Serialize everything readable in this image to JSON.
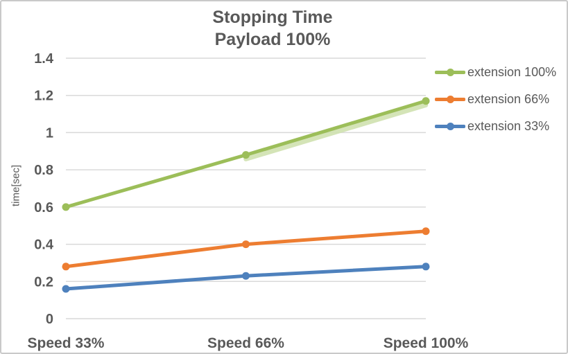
{
  "chart_data": {
    "type": "line",
    "title": "Stopping Time",
    "subtitle": "Payload 100%",
    "xlabel": "",
    "ylabel": "time[sec]",
    "categories": [
      "Speed 33%",
      "Speed 66%",
      "Speed 100%"
    ],
    "series": [
      {
        "name": "extension 100%",
        "color": "#9CBE59",
        "values": [
          0.6,
          0.88,
          1.17
        ],
        "shadow": true,
        "shadow_color": "#D0E2B0"
      },
      {
        "name": "extension 66%",
        "color": "#ED7D31",
        "values": [
          0.28,
          0.4,
          0.47
        ],
        "shadow": false
      },
      {
        "name": "extension 33%",
        "color": "#4E81BD",
        "values": [
          0.16,
          0.23,
          0.28
        ],
        "shadow": false
      }
    ],
    "ylim": [
      0,
      1.4
    ],
    "yticks": [
      0,
      0.2,
      0.4,
      0.6,
      0.8,
      1,
      1.2,
      1.4
    ],
    "grid": true,
    "legend_position": "right",
    "gridline_color": "#D9D9D9",
    "text_color": "#595959",
    "marker": "circle"
  }
}
